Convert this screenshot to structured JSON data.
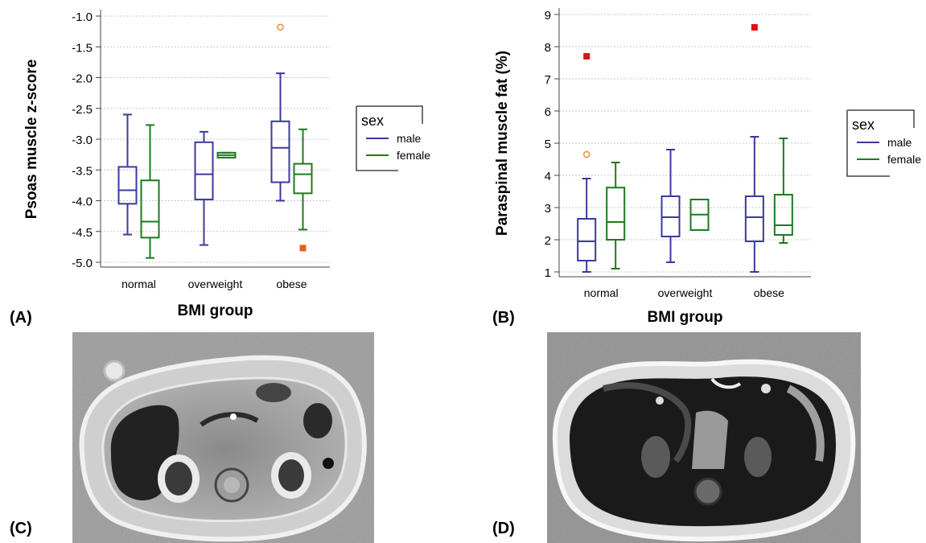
{
  "panel_labels": {
    "a": "(A)",
    "b": "(B)",
    "c": "(C)",
    "d": "(D)"
  },
  "chart_data": [
    {
      "type": "box",
      "ylabel": "Psoas muscle z-score",
      "xlabel": "BMI group",
      "categories": [
        "normal",
        "overweight",
        "obese"
      ],
      "ylim": [
        -5.0,
        -1.0
      ],
      "yticks": [
        "-1.0",
        "-1.5",
        "-2.0",
        "-2.5",
        "-3.0",
        "-3.5",
        "-4.0",
        "-4.5",
        "-5.0"
      ],
      "grid": true,
      "legend": {
        "title": "sex",
        "entries": [
          "male",
          "female"
        ],
        "position": "right"
      },
      "colors": {
        "male": "#3a3a9c",
        "female": "#1f7a1f",
        "outlier_circle": "#f08a3c",
        "outlier_square": "#e06020"
      },
      "series": [
        {
          "name": "male",
          "boxes": [
            {
              "whislo": -4.55,
              "q1": -4.05,
              "med": -3.83,
              "q3": -3.45,
              "whishi": -2.6,
              "outliers": []
            },
            {
              "whislo": -4.72,
              "q1": -3.98,
              "med": -3.57,
              "q3": -3.05,
              "whishi": -2.88,
              "outliers": []
            },
            {
              "whislo": -4.0,
              "q1": -3.7,
              "med": -3.14,
              "q3": -2.71,
              "whishi": -1.93,
              "outliers": [
                {
                  "value": -1.18,
                  "marker": "circle"
                }
              ]
            }
          ]
        },
        {
          "name": "female",
          "boxes": [
            {
              "whislo": -4.93,
              "q1": -4.6,
              "med": -4.34,
              "q3": -3.67,
              "whishi": -2.77,
              "outliers": []
            },
            {
              "whislo": -3.3,
              "q1": -3.3,
              "med": -3.26,
              "q3": -3.22,
              "whishi": -3.22,
              "outliers": []
            },
            {
              "whislo": -4.47,
              "q1": -3.88,
              "med": -3.57,
              "q3": -3.4,
              "whishi": -2.84,
              "outliers": [
                {
                  "value": -4.77,
                  "marker": "square"
                }
              ]
            }
          ]
        }
      ]
    },
    {
      "type": "box",
      "ylabel": "Paraspinal muscle fat (%)",
      "xlabel": "BMI group",
      "categories": [
        "normal",
        "overweight",
        "obese"
      ],
      "ylim": [
        1,
        9
      ],
      "yticks": [
        "1",
        "2",
        "3",
        "4",
        "5",
        "6",
        "7",
        "8",
        "9"
      ],
      "grid": true,
      "legend": {
        "title": "sex",
        "entries": [
          "male",
          "female"
        ],
        "position": "right"
      },
      "colors": {
        "male": "#3a3a9c",
        "female": "#1f7a1f",
        "outlier_circle": "#f08a3c",
        "outlier_square": "#e01010"
      },
      "series": [
        {
          "name": "male",
          "boxes": [
            {
              "whislo": 1.0,
              "q1": 1.35,
              "med": 1.95,
              "q3": 2.65,
              "whishi": 3.9,
              "outliers": [
                {
                  "value": 4.65,
                  "marker": "circle"
                },
                {
                  "value": 7.7,
                  "marker": "square"
                }
              ]
            },
            {
              "whislo": 1.3,
              "q1": 2.1,
              "med": 2.7,
              "q3": 3.35,
              "whishi": 4.8,
              "outliers": []
            },
            {
              "whislo": 1.0,
              "q1": 1.95,
              "med": 2.7,
              "q3": 3.35,
              "whishi": 5.2,
              "outliers": [
                {
                  "value": 8.6,
                  "marker": "square"
                }
              ]
            }
          ]
        },
        {
          "name": "female",
          "boxes": [
            {
              "whislo": 1.1,
              "q1": 2.0,
              "med": 2.55,
              "q3": 3.62,
              "whishi": 4.4,
              "outliers": []
            },
            {
              "whislo": 2.3,
              "q1": 2.3,
              "med": 2.78,
              "q3": 3.25,
              "whishi": 3.25,
              "outliers": []
            },
            {
              "whislo": 1.9,
              "q1": 2.15,
              "med": 2.45,
              "q3": 3.4,
              "whishi": 5.15,
              "outliers": []
            }
          ]
        }
      ]
    }
  ]
}
